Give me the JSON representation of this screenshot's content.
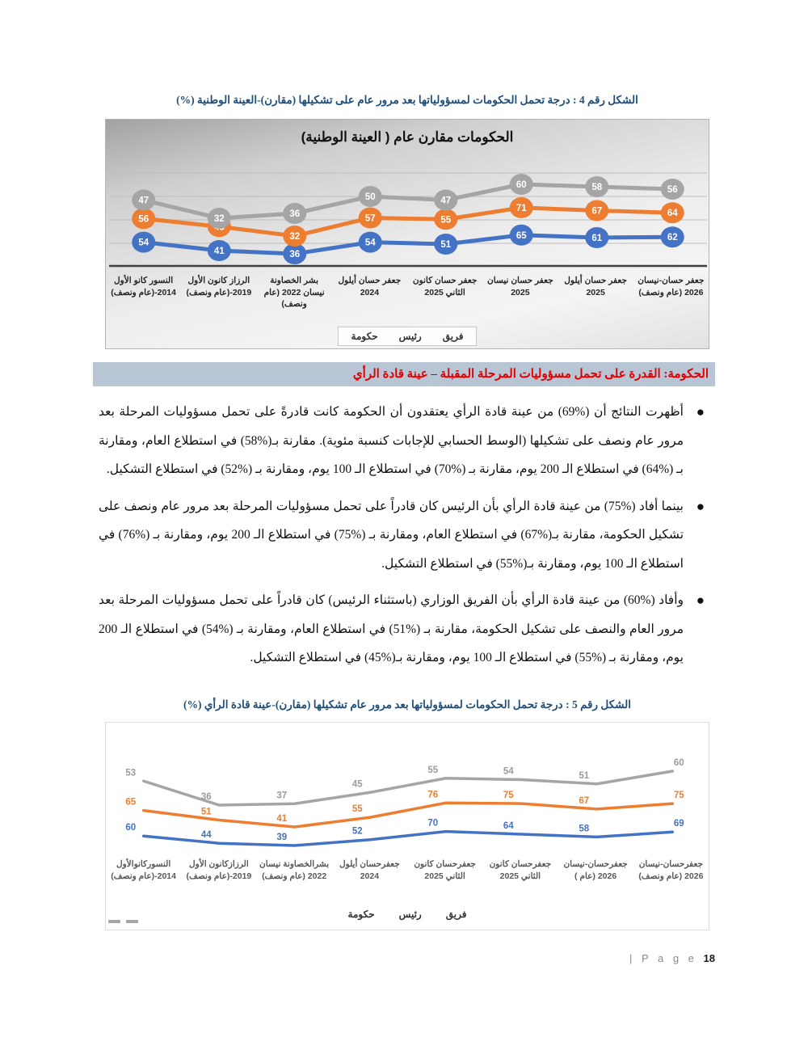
{
  "figure4": {
    "caption": "الشكل رقم 4 : درجة تحمل الحكومات لمسؤولياتها بعد مرور عام على تشكيلها (مقارن)-العينة الوطنية (%)"
  },
  "figure5": {
    "caption": "الشكل رقم 5 : درجة تحمل الحكومات لمسؤولياتها بعد مرور عام تشكيلها (مقارن)-عينة قادة الرأي (%)"
  },
  "section_header": {
    "text": "الحكومة: القدرة على تحمل مسؤوليات المرحلة المقبلة – عينة قادة الرأي"
  },
  "bullets": [
    {
      "text": "أظهرت النتائج أن (%69) من عينة قادة الرأي يعتقدون أن الحكومة كانت قادرةً على تحمل مسؤوليات المرحلة بعد مرور عام ونصف على تشكيلها (الوسط الحسابي للإجابات كنسبة مئوية). مقارنة بـ(%58) في استطلاع العام، ومقارنة بـ (%64) في استطلاع الـ 200 يوم، مقارنة بـ (%70) في استطلاع الـ 100 يوم، ومقارنة بـ (%52) في استطلاع التشكيل."
    },
    {
      "text": "بينما أفاد (%75) من عينة قادة الرأي بأن الرئيس كان قادراً على تحمل مسؤوليات المرحلة بعد مرور عام ونصف على تشكيل الحكومة، مقارنة بـ(%67) في استطلاع العام، ومقارنة بـ (%75) في استطلاع الـ 200 يوم، ومقارنة بـ (%76) في استطلاع الـ 100 يوم، ومقارنة بـ(%55) في استطلاع التشكيل."
    },
    {
      "text": "وأفاد (%60) من عينة قادة الرأي بأن الفريق الوزاري (باستثناء الرئيس) كان قادراً على تحمل مسؤوليات المرحلة بعد مرور العام والنصف على تشكيل الحكومة، مقارنة بـ (%51) في استطلاع العام، ومقارنة بـ (%54) في استطلاع الـ 200 يوم، ومقارنة بـ (%55) في استطلاع الـ 100 يوم، ومقارنة بـ(%45) في استطلاع التشكيل."
    }
  ],
  "footer": {
    "page_word": "| P a g e",
    "page_number": "18"
  },
  "chart_data": [
    {
      "type": "line",
      "title": "الحكومات مقارن عام ( العينة الوطنية)",
      "categories": [
        "النسور كانو الأول 2014-(عام ونصف)",
        "الرزاز كانون الأول 2019-(عام ونصف)",
        "بشر الخصاونة نيسان 2022 (عام ونصف)",
        "جعفر حسان أيلول 2024",
        "جعفر حسان كانون الثاني 2025",
        "جعفر حسان نيسان 2025",
        "جعفر حسان أيلول 2025",
        "جعفر حسان-نيسان 2026 (عام ونصف)"
      ],
      "series": [
        {
          "name": "حكومة",
          "key": "government",
          "color": "#4472C4",
          "values": [
            54,
            41,
            36,
            54,
            51,
            65,
            61,
            62
          ]
        },
        {
          "name": "رئيس",
          "key": "president",
          "color": "#ED7D31",
          "values": [
            56,
            45,
            32,
            57,
            55,
            71,
            67,
            64
          ]
        },
        {
          "name": "فريق",
          "key": "team",
          "color": "#A5A5A5",
          "values": [
            47,
            32,
            36,
            50,
            47,
            60,
            58,
            56
          ]
        }
      ],
      "ylim": [
        25,
        80
      ],
      "grid": true,
      "legend_position": "bottom",
      "label_style": "badge"
    },
    {
      "type": "line",
      "title": "",
      "categories": [
        "النسوركانوالأول 2014-(عام ونصف)",
        "الرزازكانون الأول 2019-(عام ونصف)",
        "بشرالخصاونة نيسان 2022 (عام ونصف)",
        "جعفرحسان أيلول 2024",
        "جعفرحسان كانون الثاني 2025",
        "جعفرحسان كانون الثاني 2025",
        "جعفرحسان-نيسان 2026 (عام )",
        "جعفرحسان-نيسان 2026 (عام ونصف)"
      ],
      "series": [
        {
          "name": "حكومة",
          "key": "government",
          "color": "#4472C4",
          "values": [
            60,
            44,
            39,
            52,
            70,
            64,
            58,
            69
          ]
        },
        {
          "name": "رئيس",
          "key": "president",
          "color": "#ED7D31",
          "values": [
            65,
            51,
            41,
            55,
            76,
            75,
            67,
            75
          ]
        },
        {
          "name": "فريق",
          "key": "team",
          "color": "#A5A5A5",
          "values": [
            53,
            36,
            37,
            45,
            55,
            54,
            51,
            60
          ]
        }
      ],
      "ylim": [
        30,
        80
      ],
      "grid": false,
      "legend_position": "bottom",
      "label_style": "text"
    }
  ]
}
